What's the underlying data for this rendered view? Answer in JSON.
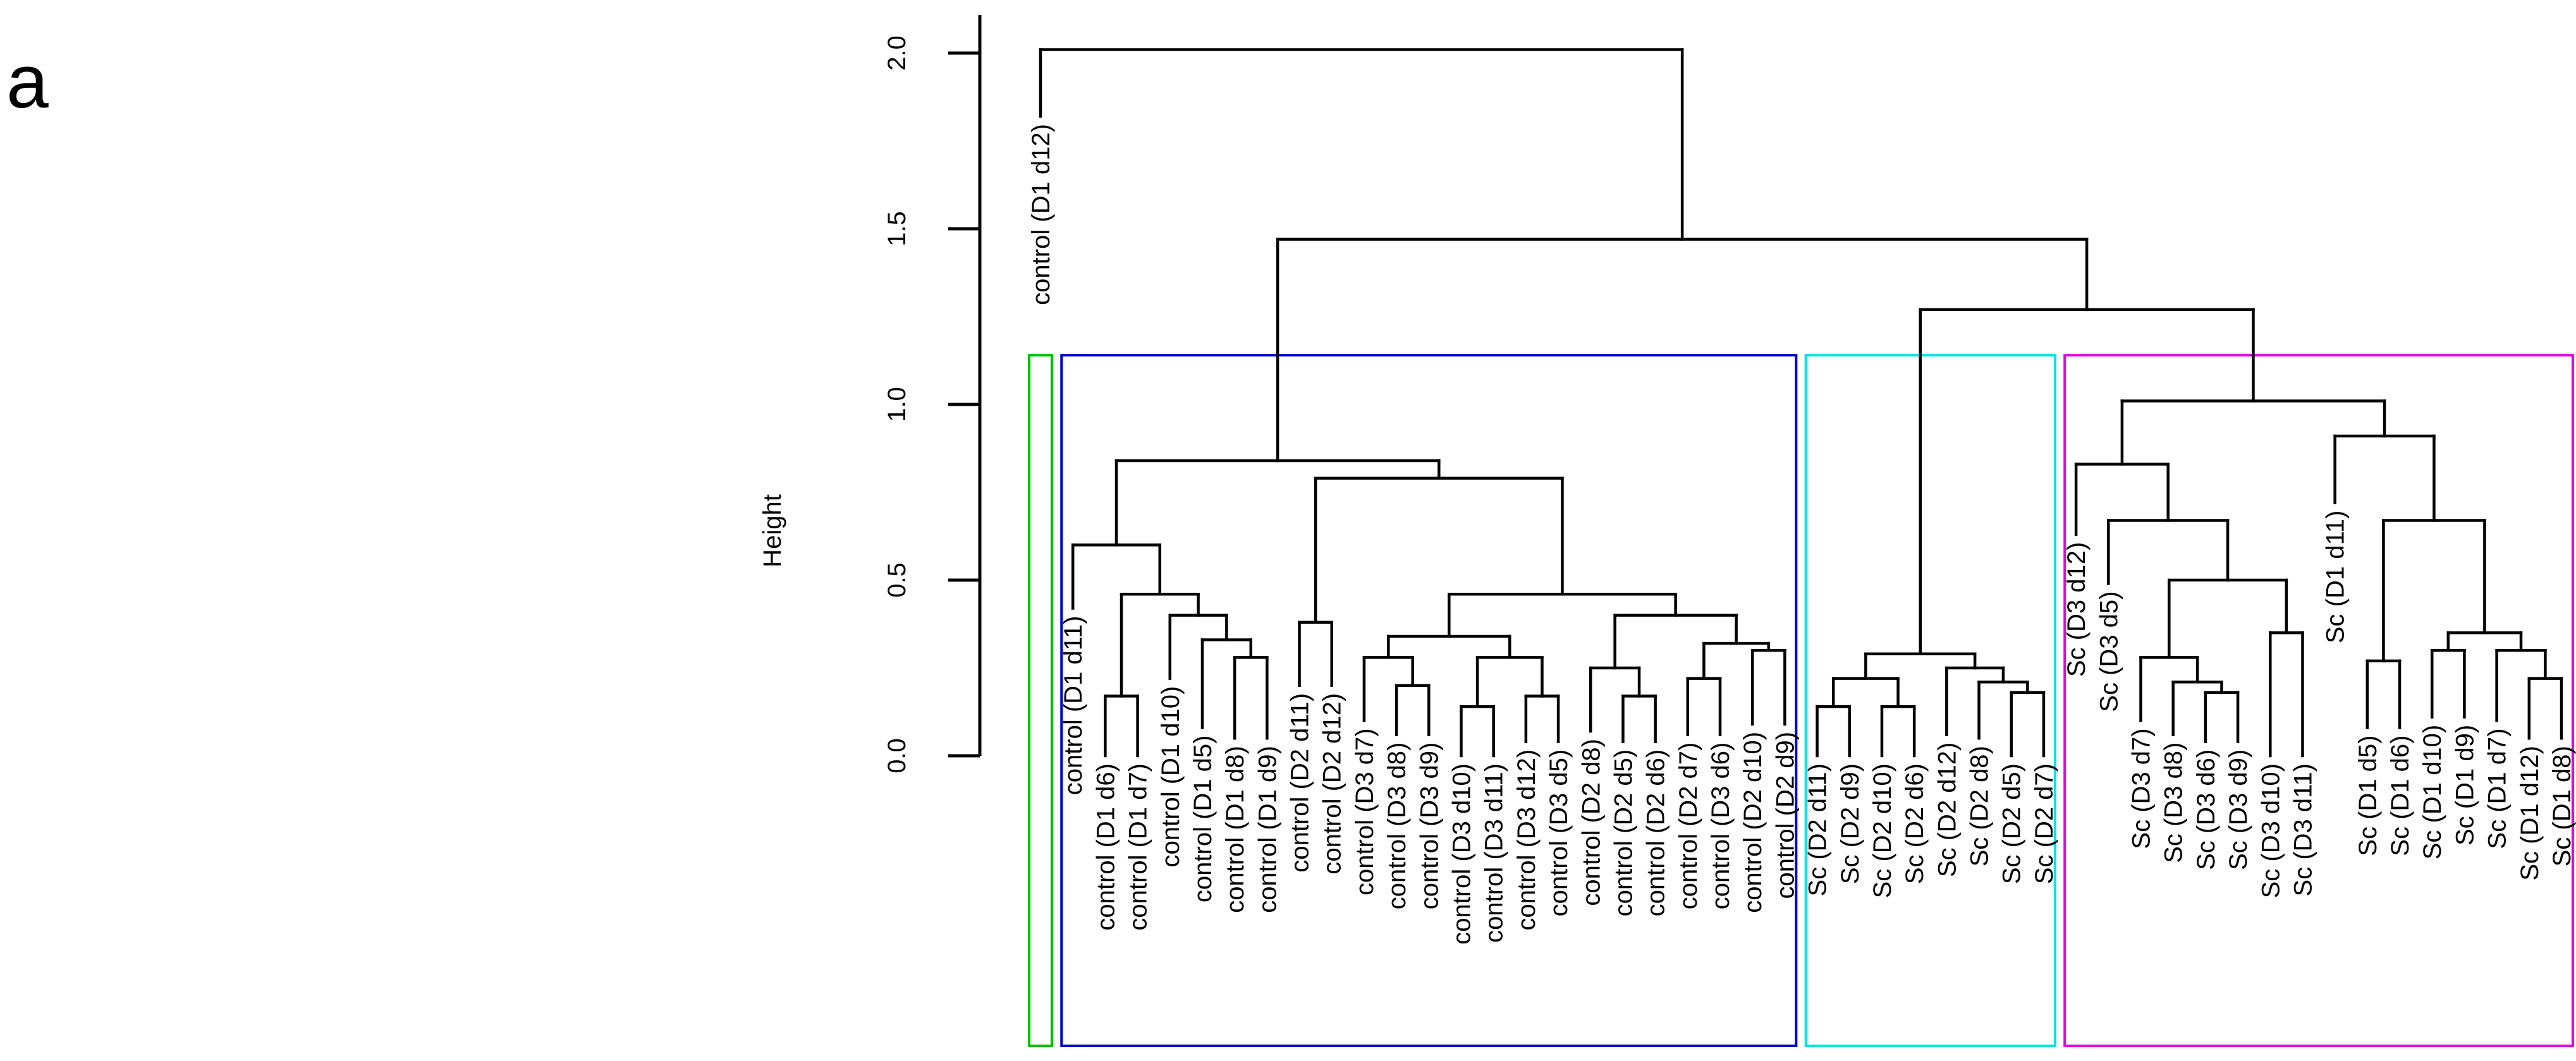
{
  "panel_label": "a",
  "chart_data": {
    "type": "dendrogram",
    "title": "",
    "ylabel": "Height",
    "ylim": [
      0,
      2.0
    ],
    "yticks": [
      "0.0",
      "0.5",
      "1.0",
      "1.5",
      "2.0"
    ],
    "leaves": [
      {
        "name": "control (D1 d12)",
        "height": 1.82,
        "cluster": 1
      },
      {
        "name": "control (D1 d11)",
        "height": 0.42,
        "cluster": 2
      },
      {
        "name": "control (D1 d6)",
        "height": 0.0,
        "cluster": 2
      },
      {
        "name": "control (D1 d7)",
        "height": 0.0,
        "cluster": 2
      },
      {
        "name": "control (D1 d10)",
        "height": 0.22,
        "cluster": 2
      },
      {
        "name": "control (D1 d5)",
        "height": 0.08,
        "cluster": 2
      },
      {
        "name": "control (D1 d8)",
        "height": 0.05,
        "cluster": 2
      },
      {
        "name": "control (D1 d9)",
        "height": 0.05,
        "cluster": 2
      },
      {
        "name": "control (D2 d11)",
        "height": 0.2,
        "cluster": 2
      },
      {
        "name": "control (D2 d12)",
        "height": 0.2,
        "cluster": 2
      },
      {
        "name": "control (D3 d7)",
        "height": 0.1,
        "cluster": 2
      },
      {
        "name": "control (D3 d8)",
        "height": 0.06,
        "cluster": 2
      },
      {
        "name": "control (D3 d9)",
        "height": 0.06,
        "cluster": 2
      },
      {
        "name": "control (D3 d10)",
        "height": 0.0,
        "cluster": 2
      },
      {
        "name": "control (D3 d11)",
        "height": 0.0,
        "cluster": 2
      },
      {
        "name": "control (D3 d12)",
        "height": 0.04,
        "cluster": 2
      },
      {
        "name": "control (D3 d5)",
        "height": 0.04,
        "cluster": 2
      },
      {
        "name": "control (D2 d8)",
        "height": 0.07,
        "cluster": 2
      },
      {
        "name": "control (D2 d5)",
        "height": 0.04,
        "cluster": 2
      },
      {
        "name": "control (D2 d6)",
        "height": 0.04,
        "cluster": 2
      },
      {
        "name": "control (D2 d7)",
        "height": 0.06,
        "cluster": 2
      },
      {
        "name": "control (D3 d6)",
        "height": 0.06,
        "cluster": 2
      },
      {
        "name": "control (D2 d10)",
        "height": 0.09,
        "cluster": 2
      },
      {
        "name": "control (D2 d9)",
        "height": 0.09,
        "cluster": 2
      },
      {
        "name": "Sc (D2 d11)",
        "height": 0.0,
        "cluster": 3
      },
      {
        "name": "Sc (D2 d9)",
        "height": 0.0,
        "cluster": 3
      },
      {
        "name": "Sc (D2 d10)",
        "height": 0.0,
        "cluster": 3
      },
      {
        "name": "Sc (D2 d6)",
        "height": 0.0,
        "cluster": 3
      },
      {
        "name": "Sc (D2 d12)",
        "height": 0.06,
        "cluster": 3
      },
      {
        "name": "Sc (D2 d8)",
        "height": 0.05,
        "cluster": 3
      },
      {
        "name": "Sc (D2 d5)",
        "height": 0.0,
        "cluster": 3
      },
      {
        "name": "Sc (D2 d7)",
        "height": 0.0,
        "cluster": 3
      },
      {
        "name": "Sc (D3 d12)",
        "height": 0.63,
        "cluster": 4
      },
      {
        "name": "Sc (D3 d5)",
        "height": 0.49,
        "cluster": 4
      },
      {
        "name": "Sc (D3 d7)",
        "height": 0.1,
        "cluster": 4
      },
      {
        "name": "Sc (D3 d8)",
        "height": 0.06,
        "cluster": 4
      },
      {
        "name": "Sc (D3 d6)",
        "height": 0.04,
        "cluster": 4
      },
      {
        "name": "Sc (D3 d9)",
        "height": 0.04,
        "cluster": 4
      },
      {
        "name": "Sc (D3 d10)",
        "height": 0.0,
        "cluster": 4
      },
      {
        "name": "Sc (D3 d11)",
        "height": 0.0,
        "cluster": 4
      },
      {
        "name": "Sc (D1 d11)",
        "height": 0.72,
        "cluster": 4
      },
      {
        "name": "Sc (D1 d5)",
        "height": 0.08,
        "cluster": 4
      },
      {
        "name": "Sc (D1 d6)",
        "height": 0.08,
        "cluster": 4
      },
      {
        "name": "Sc (D1 d10)",
        "height": 0.11,
        "cluster": 4
      },
      {
        "name": "Sc (D1 d9)",
        "height": 0.11,
        "cluster": 4
      },
      {
        "name": "Sc (D1 d7)",
        "height": 0.1,
        "cluster": 4
      },
      {
        "name": "Sc (D1 d12)",
        "height": 0.05,
        "cluster": 4
      },
      {
        "name": "Sc (D1 d8)",
        "height": 0.05,
        "cluster": 4
      }
    ],
    "merges": [
      {
        "left": 2,
        "right": 3,
        "height": 0.17
      },
      {
        "left": 6,
        "right": 7,
        "height": 0.28
      },
      {
        "left": 5,
        "right": "m1",
        "height": 0.33
      },
      {
        "left": 4,
        "right": "m2",
        "height": 0.4
      },
      {
        "left": "m0",
        "right": "m3",
        "height": 0.46
      },
      {
        "left": 1,
        "right": "m4",
        "height": 0.6
      },
      {
        "left": 8,
        "right": 9,
        "height": 0.38
      },
      {
        "left": 11,
        "right": 12,
        "height": 0.2
      },
      {
        "left": 10,
        "right": "m7",
        "height": 0.28
      },
      {
        "left": 13,
        "right": 14,
        "height": 0.14
      },
      {
        "left": 15,
        "right": 16,
        "height": 0.17
      },
      {
        "left": "m9",
        "right": "m10",
        "height": 0.28
      },
      {
        "left": "m8",
        "right": "m11",
        "height": 0.34
      },
      {
        "left": 18,
        "right": 19,
        "height": 0.17
      },
      {
        "left": 17,
        "right": "m13",
        "height": 0.25
      },
      {
        "left": 20,
        "right": 21,
        "height": 0.22
      },
      {
        "left": 22,
        "right": 23,
        "height": 0.3
      },
      {
        "left": "m15",
        "right": "m16",
        "height": 0.32
      },
      {
        "left": "m14",
        "right": "m17",
        "height": 0.4
      },
      {
        "left": "m12",
        "right": "m18",
        "height": 0.46
      },
      {
        "left": "m6",
        "right": "m19",
        "height": 0.79
      },
      {
        "left": "m5",
        "right": "m20",
        "height": 0.84
      },
      {
        "left": 24,
        "right": 25,
        "height": 0.14
      },
      {
        "left": 26,
        "right": 27,
        "height": 0.14
      },
      {
        "left": "m22",
        "right": "m23",
        "height": 0.22
      },
      {
        "left": 30,
        "right": 31,
        "height": 0.18
      },
      {
        "left": 29,
        "right": "m25",
        "height": 0.21
      },
      {
        "left": 28,
        "right": "m26",
        "height": 0.25
      },
      {
        "left": "m24",
        "right": "m27",
        "height": 0.29
      },
      {
        "left": 36,
        "right": 37,
        "height": 0.18
      },
      {
        "left": 35,
        "right": "m29",
        "height": 0.21
      },
      {
        "left": 34,
        "right": "m30",
        "height": 0.28
      },
      {
        "left": 38,
        "right": 39,
        "height": 0.35
      },
      {
        "left": "m31",
        "right": "m32",
        "height": 0.5
      },
      {
        "left": 33,
        "right": "m33",
        "height": 0.67
      },
      {
        "left": 32,
        "right": "m34",
        "height": 0.83
      },
      {
        "left": 41,
        "right": 42,
        "height": 0.27
      },
      {
        "left": 43,
        "right": 44,
        "height": 0.3
      },
      {
        "left": 46,
        "right": 47,
        "height": 0.22
      },
      {
        "left": 45,
        "right": "m38",
        "height": 0.3
      },
      {
        "left": "m37",
        "right": "m39",
        "height": 0.35
      },
      {
        "left": "m36",
        "right": "m40",
        "height": 0.67
      },
      {
        "left": 40,
        "right": "m41",
        "height": 0.91
      },
      {
        "left": "m35",
        "right": "m42",
        "height": 1.01
      },
      {
        "left": "m28",
        "right": "m43",
        "height": 1.27
      },
      {
        "left": "m21",
        "right": "m44",
        "height": 1.47
      },
      {
        "left": 0,
        "right": "m45",
        "height": 2.01
      }
    ],
    "clusters": [
      {
        "id": 1,
        "color": "#00c000",
        "first": 0,
        "last": 0
      },
      {
        "id": 2,
        "color": "#0000cc",
        "first": 1,
        "last": 23
      },
      {
        "id": 3,
        "color": "#00e5e5",
        "first": 24,
        "last": 31
      },
      {
        "id": 4,
        "color": "#e600e6",
        "first": 32,
        "last": 47
      }
    ]
  }
}
